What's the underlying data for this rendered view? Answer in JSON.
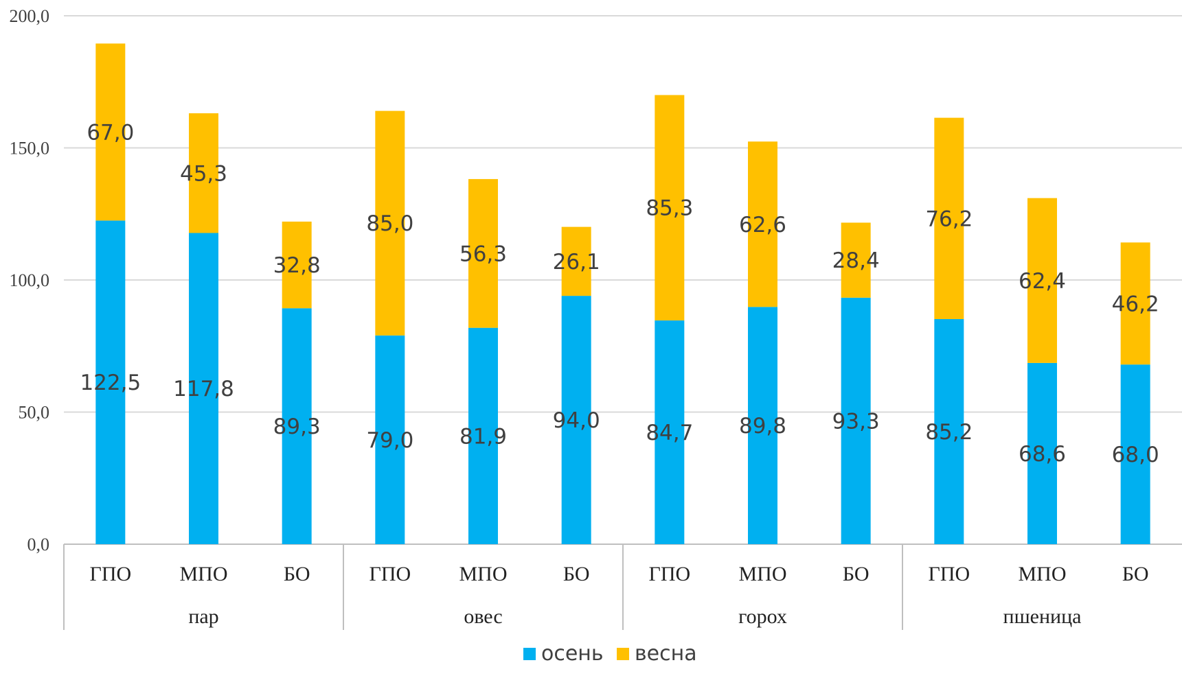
{
  "chart_data": {
    "type": "bar",
    "stacked": true,
    "title": "",
    "xlabel": "",
    "ylabel": "",
    "ylim": [
      0,
      200
    ],
    "yticks": [
      "0,0",
      "50,0",
      "100,0",
      "150,0",
      "200,0"
    ],
    "ytick_values": [
      0,
      50,
      100,
      150,
      200
    ],
    "grid": true,
    "legend_position": "bottom",
    "groups": [
      {
        "label": "пар",
        "categories": [
          "ГПО",
          "МПО",
          "БО"
        ]
      },
      {
        "label": "овес",
        "categories": [
          "ГПО",
          "МПО",
          "БО"
        ]
      },
      {
        "label": "горох",
        "categories": [
          "ГПО",
          "МПО",
          "БО"
        ]
      },
      {
        "label": "пшеница",
        "categories": [
          "ГПО",
          "МПО",
          "БО"
        ]
      }
    ],
    "series": [
      {
        "name": "осень",
        "color": "#00B0F0",
        "values": [
          122.5,
          117.8,
          89.3,
          79.0,
          81.9,
          94.0,
          84.7,
          89.8,
          93.3,
          85.2,
          68.6,
          68.0
        ],
        "labels": [
          "122,5",
          "117,8",
          "89,3",
          "79,0",
          "81,9",
          "94,0",
          "84,7",
          "89,8",
          "93,3",
          "85,2",
          "68,6",
          "68,0"
        ]
      },
      {
        "name": "весна",
        "color": "#FFC000",
        "values": [
          67.0,
          45.3,
          32.8,
          85.0,
          56.3,
          26.1,
          85.3,
          62.6,
          28.4,
          76.2,
          62.4,
          46.2
        ],
        "labels": [
          "67,0",
          "45,3",
          "32,8",
          "85,0",
          "56,3",
          "26,1",
          "85,3",
          "62,6",
          "28,4",
          "76,2",
          "62,4",
          "46,2"
        ]
      }
    ]
  }
}
